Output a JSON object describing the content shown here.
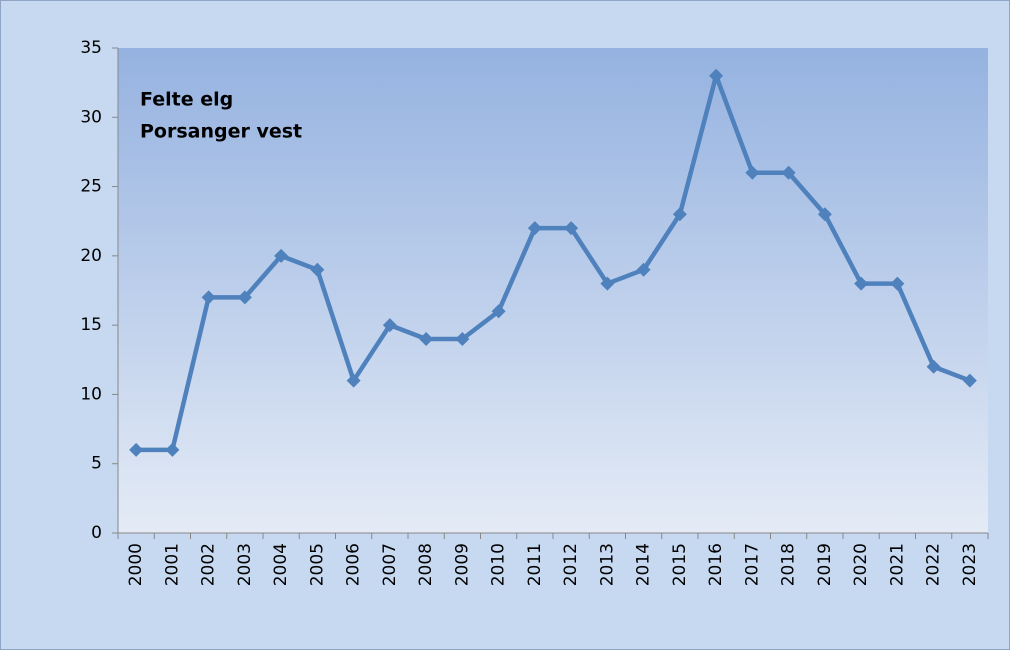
{
  "chart_data": {
    "type": "line",
    "title": "Felte elg",
    "subtitle": "Porsanger vest",
    "categories": [
      "2000",
      "2001",
      "2002",
      "2003",
      "2004",
      "2005",
      "2006",
      "2007",
      "2008",
      "2009",
      "2010",
      "2011",
      "2012",
      "2013",
      "2014",
      "2015",
      "2016",
      "2017",
      "2018",
      "2019",
      "2020",
      "2021",
      "2022",
      "2023"
    ],
    "series": [
      {
        "name": "Felte elg",
        "color": "#4f81bd",
        "values": [
          6,
          6,
          17,
          17,
          20,
          19,
          11,
          15,
          14,
          14,
          16,
          22,
          22,
          18,
          19,
          23,
          33,
          26,
          26,
          23,
          18,
          18,
          12,
          11
        ]
      }
    ],
    "ylim": [
      0,
      35
    ],
    "yticks": [
      0,
      5,
      10,
      15,
      20,
      25,
      30,
      35
    ],
    "grid": false,
    "legend": false
  }
}
